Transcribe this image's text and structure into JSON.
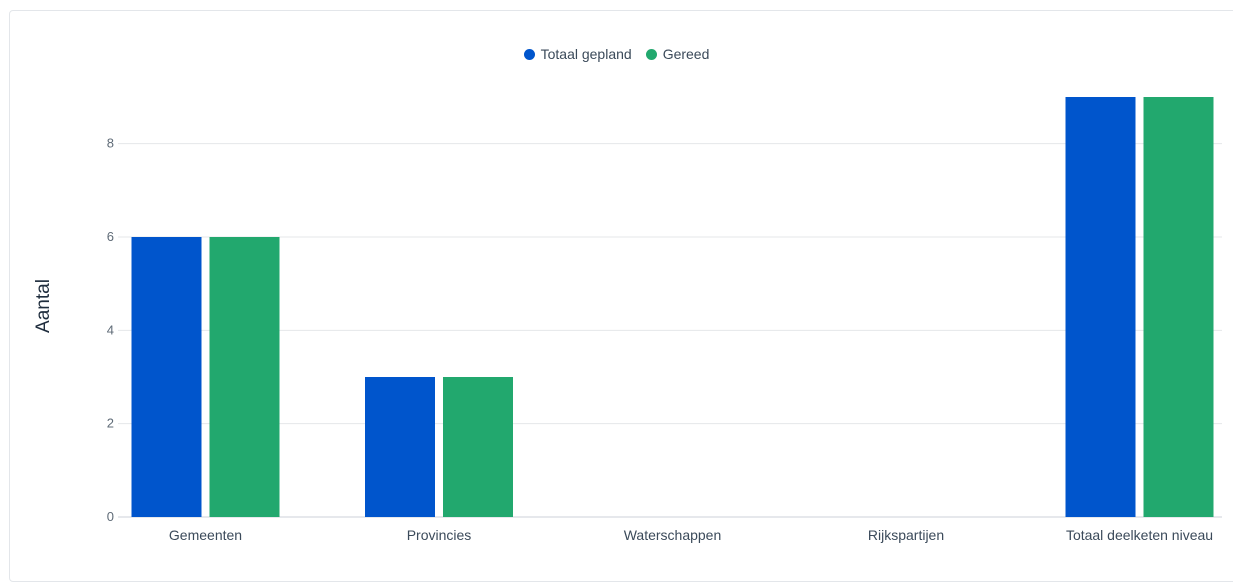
{
  "legend": {
    "series_0": "Totaal gepland",
    "series_1": "Gereed"
  },
  "colors": {
    "series_0": "#0055cc",
    "series_1": "#22a86e",
    "grid": "#e5e7ea",
    "axis": "#cdd2d8"
  },
  "chart_data": {
    "type": "bar",
    "categories": [
      "Gemeenten",
      "Provincies",
      "Waterschappen",
      "Rijkspartijen",
      "Totaal deelketen niveau"
    ],
    "series": [
      {
        "name": "Totaal gepland",
        "values": [
          6,
          3,
          0,
          0,
          9
        ]
      },
      {
        "name": "Gereed",
        "values": [
          6,
          3,
          0,
          0,
          9
        ]
      }
    ],
    "ylabel": "Aantal",
    "xlabel": "",
    "ylim": [
      0,
      9
    ],
    "yticks": [
      0,
      2,
      4,
      6,
      8
    ],
    "grid": true,
    "legend_position": "top-center"
  }
}
